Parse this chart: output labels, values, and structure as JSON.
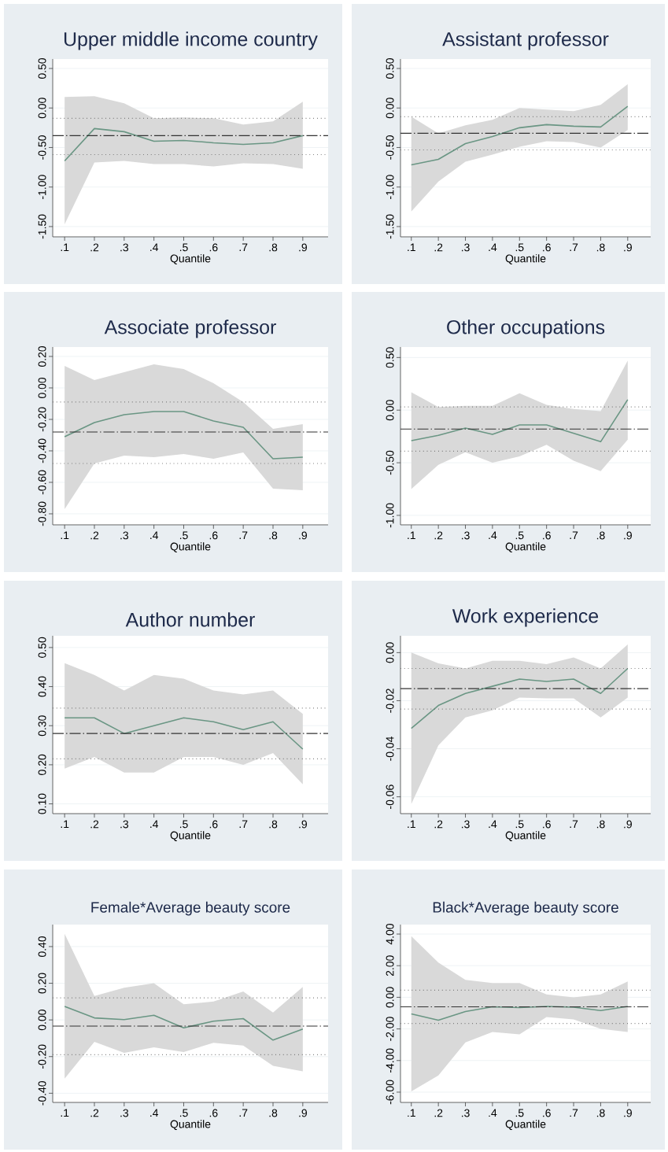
{
  "chart_data": [
    {
      "type": "line",
      "title": "Upper middle income country",
      "xlabel": "Quantile",
      "x": [
        0.1,
        0.2,
        0.3,
        0.4,
        0.5,
        0.6,
        0.7,
        0.8,
        0.9
      ],
      "xlim": [
        0.06,
        0.985
      ],
      "xticks": [
        {
          "value": 0.1,
          "label": ".1"
        },
        {
          "value": 0.2,
          "label": ".2"
        },
        {
          "value": 0.3,
          "label": ".3"
        },
        {
          "value": 0.4,
          "label": ".4"
        },
        {
          "value": 0.5,
          "label": ".5"
        },
        {
          "value": 0.6,
          "label": ".6"
        },
        {
          "value": 0.7,
          "label": ".7"
        },
        {
          "value": 0.8,
          "label": ".8"
        },
        {
          "value": 0.9,
          "label": ".9"
        }
      ],
      "ylim": [
        -1.63,
        0.62
      ],
      "yticks": [
        {
          "value": -1.5,
          "label": "-1.50"
        },
        {
          "value": -1,
          "label": "-1.00"
        },
        {
          "value": -0.5,
          "label": "-0.50"
        },
        {
          "value": 0,
          "label": "0.00"
        },
        {
          "value": 0.5,
          "label": "0.50"
        }
      ],
      "grid": "y",
      "series": [
        {
          "color": "#6a9684",
          "values": [
            -0.67,
            -0.26,
            -0.3,
            -0.42,
            -0.41,
            -0.44,
            -0.46,
            -0.44,
            -0.35
          ],
          "lower": [
            -1.47,
            -0.69,
            -0.67,
            -0.71,
            -0.71,
            -0.74,
            -0.7,
            -0.71,
            -0.77
          ],
          "upper": [
            0.14,
            0.15,
            0.06,
            -0.13,
            -0.12,
            -0.13,
            -0.21,
            -0.17,
            0.08
          ]
        }
      ],
      "ref_lines": [
        {
          "axis": "y",
          "value": -0.35,
          "color": "#333333",
          "line_style": "dashed"
        },
        {
          "axis": "y",
          "value": -0.13,
          "color": "#666666",
          "line_style": "dotted"
        },
        {
          "axis": "y",
          "value": -0.59,
          "color": "#666666",
          "line_style": "dotted"
        }
      ]
    },
    {
      "type": "line",
      "title": "Assistant professor",
      "xlabel": "Quantile",
      "x": [
        0.1,
        0.2,
        0.3,
        0.4,
        0.5,
        0.6,
        0.7,
        0.8,
        0.9
      ],
      "xlim": [
        0.06,
        0.985
      ],
      "xticks": [
        {
          "value": 0.1,
          "label": ".1"
        },
        {
          "value": 0.2,
          "label": ".2"
        },
        {
          "value": 0.3,
          "label": ".3"
        },
        {
          "value": 0.4,
          "label": ".4"
        },
        {
          "value": 0.5,
          "label": ".5"
        },
        {
          "value": 0.6,
          "label": ".6"
        },
        {
          "value": 0.7,
          "label": ".7"
        },
        {
          "value": 0.8,
          "label": ".8"
        },
        {
          "value": 0.9,
          "label": ".9"
        }
      ],
      "ylim": [
        -1.63,
        0.62
      ],
      "yticks": [
        {
          "value": -1.5,
          "label": "-1.50"
        },
        {
          "value": -1,
          "label": "-1.00"
        },
        {
          "value": -0.5,
          "label": "-0.50"
        },
        {
          "value": 0,
          "label": "0.00"
        },
        {
          "value": 0.5,
          "label": "0.50"
        }
      ],
      "grid": "y",
      "series": [
        {
          "color": "#6a9684",
          "values": [
            -0.72,
            -0.65,
            -0.45,
            -0.36,
            -0.25,
            -0.21,
            -0.23,
            -0.24,
            0.02
          ],
          "lower": [
            -1.31,
            -0.93,
            -0.68,
            -0.59,
            -0.49,
            -0.42,
            -0.43,
            -0.5,
            -0.28
          ],
          "upper": [
            -0.11,
            -0.32,
            -0.22,
            -0.15,
            0.0,
            -0.02,
            -0.04,
            0.04,
            0.3
          ]
        }
      ],
      "ref_lines": [
        {
          "axis": "y",
          "value": -0.32,
          "color": "#333333",
          "line_style": "dashed"
        },
        {
          "axis": "y",
          "value": -0.11,
          "color": "#666666",
          "line_style": "dotted"
        },
        {
          "axis": "y",
          "value": -0.53,
          "color": "#666666",
          "line_style": "dotted"
        }
      ]
    },
    {
      "type": "line",
      "title": "Associate professor",
      "xlabel": "Quantile",
      "x": [
        0.1,
        0.2,
        0.3,
        0.4,
        0.5,
        0.6,
        0.7,
        0.8,
        0.9
      ],
      "xlim": [
        0.06,
        0.985
      ],
      "xticks": [
        {
          "value": 0.1,
          "label": ".1"
        },
        {
          "value": 0.2,
          "label": ".2"
        },
        {
          "value": 0.3,
          "label": ".3"
        },
        {
          "value": 0.4,
          "label": ".4"
        },
        {
          "value": 0.5,
          "label": ".5"
        },
        {
          "value": 0.6,
          "label": ".6"
        },
        {
          "value": 0.7,
          "label": ".7"
        },
        {
          "value": 0.8,
          "label": ".8"
        },
        {
          "value": 0.9,
          "label": ".9"
        }
      ],
      "ylim": [
        -0.87,
        0.26
      ],
      "yticks": [
        {
          "value": -0.8,
          "label": "-0.80"
        },
        {
          "value": -0.6,
          "label": "-0.60"
        },
        {
          "value": -0.4,
          "label": "-0.40"
        },
        {
          "value": -0.2,
          "label": "-0.20"
        },
        {
          "value": 0,
          "label": "0.00"
        },
        {
          "value": 0.2,
          "label": "0.20"
        }
      ],
      "grid": "y",
      "series": [
        {
          "color": "#6a9684",
          "values": [
            -0.31,
            -0.22,
            -0.17,
            -0.15,
            -0.15,
            -0.21,
            -0.25,
            -0.45,
            -0.44
          ],
          "lower": [
            -0.77,
            -0.48,
            -0.43,
            -0.44,
            -0.42,
            -0.45,
            -0.41,
            -0.64,
            -0.65
          ],
          "upper": [
            0.14,
            0.05,
            0.1,
            0.15,
            0.12,
            0.03,
            -0.09,
            -0.26,
            -0.23
          ]
        }
      ],
      "ref_lines": [
        {
          "axis": "y",
          "value": -0.28,
          "color": "#333333",
          "line_style": "dashed"
        },
        {
          "axis": "y",
          "value": -0.09,
          "color": "#666666",
          "line_style": "dotted"
        },
        {
          "axis": "y",
          "value": -0.48,
          "color": "#666666",
          "line_style": "dotted"
        }
      ]
    },
    {
      "type": "line",
      "title": "Other occupations",
      "xlabel": "Quantile",
      "x": [
        0.1,
        0.2,
        0.3,
        0.4,
        0.5,
        0.6,
        0.7,
        0.8,
        0.9
      ],
      "xlim": [
        0.06,
        0.985
      ],
      "xticks": [
        {
          "value": 0.1,
          "label": ".1"
        },
        {
          "value": 0.2,
          "label": ".2"
        },
        {
          "value": 0.3,
          "label": ".3"
        },
        {
          "value": 0.4,
          "label": ".4"
        },
        {
          "value": 0.5,
          "label": ".5"
        },
        {
          "value": 0.6,
          "label": ".6"
        },
        {
          "value": 0.7,
          "label": ".7"
        },
        {
          "value": 0.8,
          "label": ".8"
        },
        {
          "value": 0.9,
          "label": ".9"
        }
      ],
      "ylim": [
        -1.09,
        0.6
      ],
      "yticks": [
        {
          "value": -1,
          "label": "-1.00"
        },
        {
          "value": -0.5,
          "label": "-0.50"
        },
        {
          "value": 0,
          "label": "0.00"
        },
        {
          "value": 0.5,
          "label": "0.50"
        }
      ],
      "grid": "y",
      "series": [
        {
          "color": "#6a9684",
          "values": [
            -0.29,
            -0.24,
            -0.17,
            -0.23,
            -0.14,
            -0.14,
            -0.22,
            -0.3,
            0.1
          ],
          "lower": [
            -0.75,
            -0.52,
            -0.4,
            -0.5,
            -0.44,
            -0.33,
            -0.48,
            -0.58,
            -0.28
          ],
          "upper": [
            0.17,
            0.03,
            0.04,
            0.04,
            0.16,
            0.05,
            0.01,
            -0.01,
            0.47
          ]
        }
      ],
      "ref_lines": [
        {
          "axis": "y",
          "value": -0.18,
          "color": "#333333",
          "line_style": "dashed"
        },
        {
          "axis": "y",
          "value": 0.03,
          "color": "#666666",
          "line_style": "dotted"
        },
        {
          "axis": "y",
          "value": -0.39,
          "color": "#666666",
          "line_style": "dotted"
        }
      ]
    },
    {
      "type": "line",
      "title": "Author number",
      "xlabel": "Quantile",
      "x": [
        0.1,
        0.2,
        0.3,
        0.4,
        0.5,
        0.6,
        0.7,
        0.8,
        0.9
      ],
      "xlim": [
        0.06,
        0.985
      ],
      "xticks": [
        {
          "value": 0.1,
          "label": ".1"
        },
        {
          "value": 0.2,
          "label": ".2"
        },
        {
          "value": 0.3,
          "label": ".3"
        },
        {
          "value": 0.4,
          "label": ".4"
        },
        {
          "value": 0.5,
          "label": ".5"
        },
        {
          "value": 0.6,
          "label": ".6"
        },
        {
          "value": 0.7,
          "label": ".7"
        },
        {
          "value": 0.8,
          "label": ".8"
        },
        {
          "value": 0.9,
          "label": ".9"
        }
      ],
      "ylim": [
        0.075,
        0.53
      ],
      "yticks": [
        {
          "value": 0.1,
          "label": "0.10"
        },
        {
          "value": 0.2,
          "label": "0.20"
        },
        {
          "value": 0.3,
          "label": "0.30"
        },
        {
          "value": 0.4,
          "label": "0.40"
        },
        {
          "value": 0.5,
          "label": "0.50"
        }
      ],
      "grid": "y",
      "series": [
        {
          "color": "#6a9684",
          "values": [
            0.32,
            0.32,
            0.28,
            0.3,
            0.32,
            0.31,
            0.29,
            0.31,
            0.24
          ],
          "lower": [
            0.19,
            0.22,
            0.18,
            0.18,
            0.22,
            0.22,
            0.2,
            0.23,
            0.15
          ],
          "upper": [
            0.46,
            0.43,
            0.39,
            0.43,
            0.42,
            0.39,
            0.38,
            0.39,
            0.33
          ]
        }
      ],
      "ref_lines": [
        {
          "axis": "y",
          "value": 0.28,
          "color": "#333333",
          "line_style": "dashed"
        },
        {
          "axis": "y",
          "value": 0.345,
          "color": "#666666",
          "line_style": "dotted"
        },
        {
          "axis": "y",
          "value": 0.215,
          "color": "#666666",
          "line_style": "dotted"
        }
      ]
    },
    {
      "type": "line",
      "title": "Work experience",
      "xlabel": "Quantile",
      "x": [
        0.1,
        0.2,
        0.3,
        0.4,
        0.5,
        0.6,
        0.7,
        0.8,
        0.9
      ],
      "xlim": [
        0.06,
        0.985
      ],
      "xticks": [
        {
          "value": 0.1,
          "label": ".1"
        },
        {
          "value": 0.2,
          "label": ".2"
        },
        {
          "value": 0.3,
          "label": ".3"
        },
        {
          "value": 0.4,
          "label": ".4"
        },
        {
          "value": 0.5,
          "label": ".5"
        },
        {
          "value": 0.6,
          "label": ".6"
        },
        {
          "value": 0.7,
          "label": ".7"
        },
        {
          "value": 0.8,
          "label": ".8"
        },
        {
          "value": 0.9,
          "label": ".9"
        }
      ],
      "ylim": [
        -0.067,
        0.007
      ],
      "yticks": [
        {
          "value": -0.06,
          "label": "-0.06"
        },
        {
          "value": -0.04,
          "label": "-0.04"
        },
        {
          "value": -0.02,
          "label": "-0.02"
        },
        {
          "value": 0,
          "label": "0.00"
        }
      ],
      "grid": "y",
      "series": [
        {
          "color": "#6a9684",
          "values": [
            -0.0315,
            -0.022,
            -0.017,
            -0.014,
            -0.011,
            -0.012,
            -0.011,
            -0.017,
            -0.0066
          ],
          "lower": [
            -0.063,
            -0.0386,
            -0.027,
            -0.024,
            -0.0187,
            -0.019,
            -0.019,
            -0.027,
            -0.0187
          ],
          "upper": [
            0.0,
            -0.0045,
            -0.0066,
            -0.0034,
            -0.0034,
            -0.0048,
            -0.002,
            -0.0066,
            0.0034
          ]
        }
      ],
      "ref_lines": [
        {
          "axis": "y",
          "value": -0.015,
          "color": "#333333",
          "line_style": "dashed"
        },
        {
          "axis": "y",
          "value": -0.0066,
          "color": "#666666",
          "line_style": "dotted"
        },
        {
          "axis": "y",
          "value": -0.0235,
          "color": "#666666",
          "line_style": "dotted"
        }
      ]
    },
    {
      "type": "line",
      "title": "Female*Average beauty score",
      "xlabel": "Quantile",
      "x": [
        0.1,
        0.2,
        0.3,
        0.4,
        0.5,
        0.6,
        0.7,
        0.8,
        0.9
      ],
      "xlim": [
        0.06,
        0.985
      ],
      "xticks": [
        {
          "value": 0.1,
          "label": ".1"
        },
        {
          "value": 0.2,
          "label": ".2"
        },
        {
          "value": 0.3,
          "label": ".3"
        },
        {
          "value": 0.4,
          "label": ".4"
        },
        {
          "value": 0.5,
          "label": ".5"
        },
        {
          "value": 0.6,
          "label": ".6"
        },
        {
          "value": 0.7,
          "label": ".7"
        },
        {
          "value": 0.8,
          "label": ".8"
        },
        {
          "value": 0.9,
          "label": ".9"
        }
      ],
      "ylim": [
        -0.45,
        0.52
      ],
      "yticks": [
        {
          "value": -0.4,
          "label": "-0.40"
        },
        {
          "value": -0.2,
          "label": "-0.20"
        },
        {
          "value": 0,
          "label": "0.00"
        },
        {
          "value": 0.2,
          "label": "0.20"
        },
        {
          "value": 0.4,
          "label": "0.40"
        }
      ],
      "grid": "y",
      "series": [
        {
          "color": "#6a9684",
          "values": [
            0.074,
            0.011,
            0.002,
            0.025,
            -0.043,
            -0.007,
            0.007,
            -0.11,
            -0.05
          ],
          "lower": [
            -0.32,
            -0.12,
            -0.18,
            -0.15,
            -0.175,
            -0.125,
            -0.14,
            -0.25,
            -0.28
          ],
          "upper": [
            0.47,
            0.13,
            0.175,
            0.2,
            0.085,
            0.1,
            0.155,
            0.04,
            0.18
          ]
        }
      ],
      "ref_lines": [
        {
          "axis": "y",
          "value": -0.034,
          "color": "#333333",
          "line_style": "dashed"
        },
        {
          "axis": "y",
          "value": 0.12,
          "color": "#666666",
          "line_style": "dotted"
        },
        {
          "axis": "y",
          "value": -0.19,
          "color": "#666666",
          "line_style": "dotted"
        }
      ]
    },
    {
      "type": "line",
      "title": "Black*Average beauty score",
      "xlabel": "Quantile",
      "x": [
        0.1,
        0.2,
        0.3,
        0.4,
        0.5,
        0.6,
        0.7,
        0.8,
        0.9
      ],
      "xlim": [
        0.06,
        0.985
      ],
      "xticks": [
        {
          "value": 0.1,
          "label": ".1"
        },
        {
          "value": 0.2,
          "label": ".2"
        },
        {
          "value": 0.3,
          "label": ".3"
        },
        {
          "value": 0.4,
          "label": ".4"
        },
        {
          "value": 0.5,
          "label": ".5"
        },
        {
          "value": 0.6,
          "label": ".6"
        },
        {
          "value": 0.7,
          "label": ".7"
        },
        {
          "value": 0.8,
          "label": ".8"
        },
        {
          "value": 0.9,
          "label": ".9"
        }
      ],
      "ylim": [
        -6.65,
        4.6
      ],
      "yticks": [
        {
          "value": -6,
          "label": "-6.00"
        },
        {
          "value": -4,
          "label": "-4.00"
        },
        {
          "value": -2,
          "label": "-2.00"
        },
        {
          "value": 0,
          "label": "0.00"
        },
        {
          "value": 2,
          "label": "2.00"
        },
        {
          "value": 4,
          "label": "4.00"
        }
      ],
      "grid": "y",
      "series": [
        {
          "color": "#6a9684",
          "values": [
            -1.05,
            -1.45,
            -0.9,
            -0.6,
            -0.65,
            -0.58,
            -0.63,
            -0.84,
            -0.58
          ],
          "lower": [
            -5.95,
            -4.95,
            -2.85,
            -2.2,
            -2.35,
            -1.25,
            -1.4,
            -2.0,
            -2.2
          ],
          "upper": [
            3.87,
            2.2,
            1.1,
            0.9,
            0.9,
            0.18,
            0.0,
            0.18,
            1.0
          ]
        }
      ],
      "ref_lines": [
        {
          "axis": "y",
          "value": -0.6,
          "color": "#333333",
          "line_style": "dashed"
        },
        {
          "axis": "y",
          "value": 0.45,
          "color": "#666666",
          "line_style": "dotted"
        },
        {
          "axis": "y",
          "value": -1.65,
          "color": "#666666",
          "line_style": "dotted"
        }
      ]
    }
  ]
}
